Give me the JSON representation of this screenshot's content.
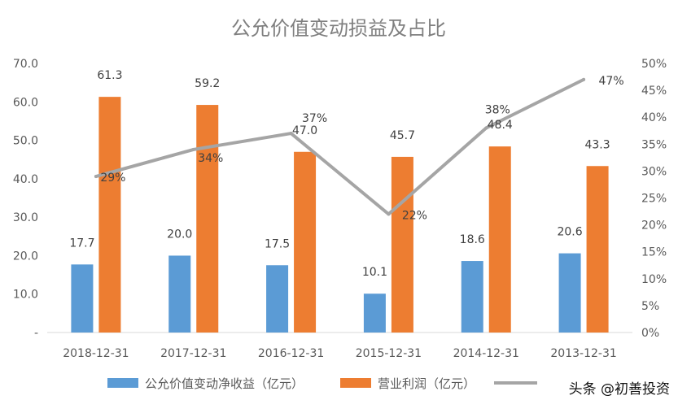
{
  "chart_data": {
    "type": "bar",
    "title": "公允价值变动损益及占比",
    "categories": [
      "2018-12-31",
      "2017-12-31",
      "2016-12-31",
      "2015-12-31",
      "2014-12-31",
      "2013-12-31"
    ],
    "series": [
      {
        "name": "公允价值变动净收益（亿元）",
        "type": "bar",
        "axis": "left",
        "color": "#5b9bd5",
        "values": [
          17.7,
          20.0,
          17.5,
          10.1,
          18.6,
          20.6
        ],
        "labels": [
          "17.7",
          "20.0",
          "17.5",
          "10.1",
          "18.6",
          "20.6"
        ]
      },
      {
        "name": "营业利润（亿元）",
        "type": "bar",
        "axis": "left",
        "color": "#ed7d31",
        "values": [
          61.3,
          59.2,
          47.0,
          45.7,
          48.4,
          43.3
        ],
        "labels": [
          "61.3",
          "59.2",
          "47.0",
          "45.7",
          "48.4",
          "43.3"
        ]
      },
      {
        "name": "",
        "type": "line",
        "axis": "right",
        "color": "#a5a5a5",
        "values": [
          29,
          34,
          37,
          22,
          38,
          47
        ],
        "labels": [
          "29%",
          "34%",
          "37%",
          "22%",
          "38%",
          "47%"
        ]
      }
    ],
    "y_left": {
      "range": [
        0,
        70
      ],
      "ticks": [
        0,
        10,
        20,
        30,
        40,
        50,
        60,
        70
      ],
      "tick_labels": [
        "-",
        "10.0",
        "20.0",
        "30.0",
        "40.0",
        "50.0",
        "60.0",
        "70.0"
      ]
    },
    "y_right": {
      "range": [
        0,
        50
      ],
      "ticks": [
        0,
        5,
        10,
        15,
        20,
        25,
        30,
        35,
        40,
        45,
        50
      ],
      "tick_labels": [
        "0%",
        "5%",
        "10%",
        "15%",
        "20%",
        "25%",
        "30%",
        "35%",
        "40%",
        "45%",
        "50%"
      ]
    },
    "legend": "bottom",
    "grid": false
  },
  "watermark": "头条 @初善投资"
}
